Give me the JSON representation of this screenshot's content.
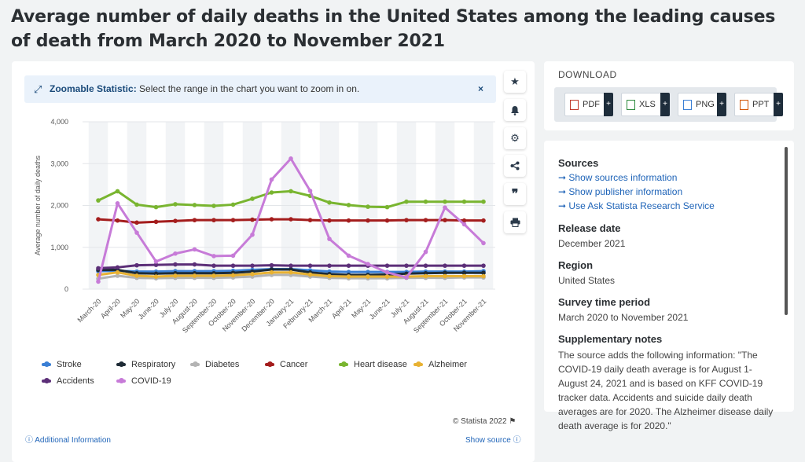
{
  "page": {
    "title": "Average number of daily deaths in the United States among the leading causes of death from March 2020 to November 2021"
  },
  "zoom": {
    "label": "Zoomable Statistic:",
    "text": "Select the range in the chart you want to zoom in on.",
    "close": "×"
  },
  "footer": {
    "copyright": "© Statista 2022",
    "additional": "Additional Information",
    "show_source": "Show source"
  },
  "download": {
    "title": "DOWNLOAD",
    "buttons": [
      {
        "label": "PDF"
      },
      {
        "label": "XLS"
      },
      {
        "label": "PNG"
      },
      {
        "label": "PPT"
      }
    ],
    "plus": "+"
  },
  "sources": {
    "heading": "Sources",
    "links": [
      "Show sources information",
      "Show publisher information",
      "Use Ask Statista Research Service"
    ]
  },
  "release": {
    "heading": "Release date",
    "value": "December 2021"
  },
  "region": {
    "heading": "Region",
    "value": "United States"
  },
  "survey": {
    "heading": "Survey time period",
    "value": "March 2020 to November 2021"
  },
  "supplementary": {
    "heading": "Supplementary notes",
    "text": "The source adds the following information: \"The COVID-19 daily death average is for August 1-August 24, 2021 and is based on KFF COVID-19 tracker data. Accidents and suicide daily death averages are for 2020. The Alzheimer disease daily death average is for 2020.\""
  },
  "chart_data": {
    "type": "line",
    "title": "",
    "xlabel": "",
    "ylabel": "Average number of daily deaths",
    "ylim": [
      0,
      4000
    ],
    "yticks": [
      "0",
      "1,000",
      "2,000",
      "3,000",
      "4,000"
    ],
    "grid": true,
    "legend_placement": "bottom",
    "categories": [
      "March-20",
      "April-20",
      "May-20",
      "June-20",
      "July-20",
      "August-20",
      "September-20",
      "October-20",
      "November-20",
      "December-20",
      "January-21",
      "February-21",
      "March-21",
      "April-21",
      "May-21",
      "June-21",
      "July-21",
      "August-21",
      "September-21",
      "October-21",
      "November-21"
    ],
    "series": [
      {
        "name": "Stroke",
        "color": "#3a7fd5",
        "values": [
          430,
          440,
          420,
          420,
          430,
          430,
          430,
          440,
          460,
          480,
          480,
          450,
          420,
          410,
          410,
          410,
          410,
          420,
          420,
          420,
          430
        ]
      },
      {
        "name": "Respiratory",
        "color": "#1e2b36",
        "values": [
          460,
          460,
          380,
          370,
          380,
          380,
          380,
          390,
          420,
          470,
          470,
          400,
          360,
          340,
          340,
          350,
          370,
          380,
          390,
          390,
          390
        ]
      },
      {
        "name": "Diabetes",
        "color": "#b4b4b4",
        "values": [
          250,
          320,
          270,
          260,
          270,
          270,
          270,
          280,
          300,
          340,
          340,
          300,
          270,
          260,
          260,
          260,
          270,
          270,
          270,
          280,
          280
        ]
      },
      {
        "name": "Cancer",
        "color": "#a41d1d",
        "values": [
          1670,
          1640,
          1590,
          1610,
          1630,
          1650,
          1650,
          1650,
          1660,
          1670,
          1670,
          1650,
          1640,
          1640,
          1640,
          1640,
          1650,
          1650,
          1650,
          1640,
          1640
        ]
      },
      {
        "name": "Heart disease",
        "color": "#79b530",
        "values": [
          2120,
          2340,
          2020,
          1960,
          2030,
          2010,
          1990,
          2020,
          2160,
          2310,
          2340,
          2230,
          2070,
          2010,
          1970,
          1960,
          2090,
          2090,
          2090,
          2090,
          2090
        ]
      },
      {
        "name": "Alzheimer",
        "color": "#e8b233",
        "values": [
          340,
          400,
          320,
          300,
          320,
          320,
          320,
          330,
          360,
          400,
          400,
          350,
          310,
          300,
          300,
          300,
          300,
          310,
          310,
          310,
          310
        ]
      },
      {
        "name": "Accidents",
        "color": "#5c2f78",
        "values": [
          500,
          520,
          570,
          580,
          590,
          590,
          560,
          560,
          560,
          570,
          560,
          560,
          560,
          560,
          560,
          560,
          560,
          560,
          560,
          560,
          560
        ]
      },
      {
        "name": "COVID-19",
        "color": "#c77bd8",
        "values": [
          180,
          2050,
          1350,
          660,
          850,
          950,
          790,
          800,
          1300,
          2620,
          3120,
          2350,
          1200,
          800,
          600,
          400,
          280,
          890,
          1950,
          1550,
          1100
        ]
      }
    ]
  }
}
